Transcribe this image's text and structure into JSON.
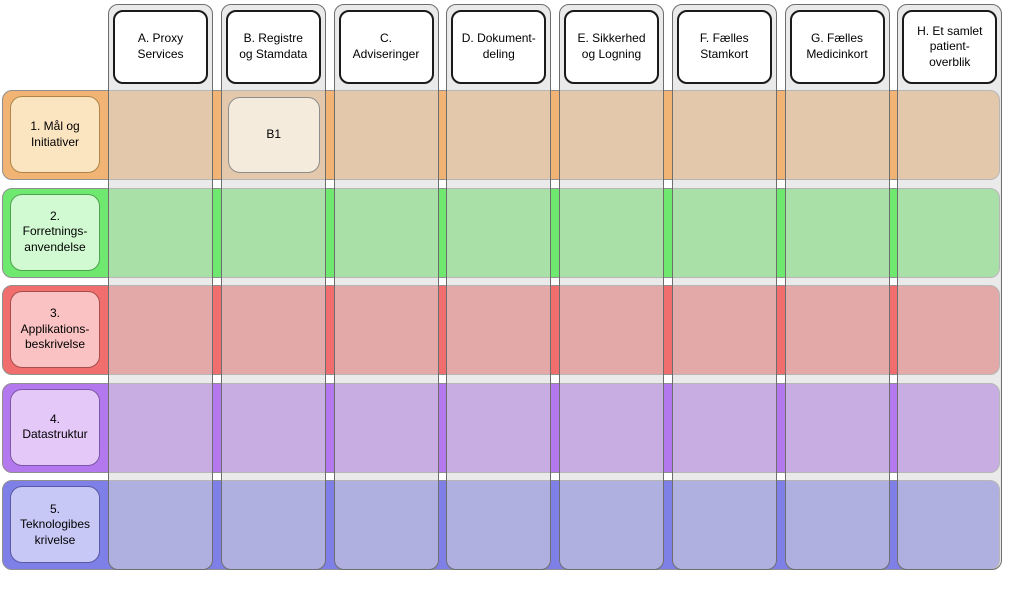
{
  "diagram": {
    "type": "architecture-matrix",
    "columns": [
      {
        "id": "A",
        "label": "A. Proxy\nServices"
      },
      {
        "id": "B",
        "label": "B. Registre\nog Stamdata"
      },
      {
        "id": "C",
        "label": "C.\nAdviseringer"
      },
      {
        "id": "D",
        "label": "D. Dokument-\ndeling"
      },
      {
        "id": "E",
        "label": "E. Sikkerhed\nog Logning"
      },
      {
        "id": "F",
        "label": "F. Fælles\nStamkort"
      },
      {
        "id": "G",
        "label": "G. Fælles\nMedicinkort"
      },
      {
        "id": "H",
        "label": "H. Et samlet\npatient-\noverblik"
      }
    ],
    "rows": [
      {
        "id": "1",
        "label": "1. Mål og\nInitiativer",
        "band_color": "#F2B474",
        "label_fill": "#FBE5C1",
        "label_border": "#AE8547"
      },
      {
        "id": "2",
        "label": "2.\nForretnings-\nanvendelse",
        "band_color": "#6EE86E",
        "label_fill": "#D2FAD2",
        "label_border": "#4FA24F"
      },
      {
        "id": "3",
        "label": "3.\nApplikations-\nbeskrivelse",
        "band_color": "#F06E6E",
        "label_fill": "#FAC2C2",
        "label_border": "#A84D4D"
      },
      {
        "id": "4",
        "label": "4.\nDatastruktur",
        "band_color": "#B478EE",
        "label_fill": "#E4C8F8",
        "label_border": "#7C56A7"
      },
      {
        "id": "5",
        "label": "5.\nTeknologibes\nkrivelse",
        "band_color": "#7F7FE8",
        "label_fill": "#C8C8F7",
        "label_border": "#5959A2"
      }
    ],
    "cells": [
      {
        "label": "B1",
        "row_id": "1",
        "column_id": "B",
        "fill": "#F5EBDC",
        "border": "#8C8C8C"
      }
    ],
    "colors": {
      "background": "#FFFFFF",
      "column_fill": "rgba(216,216,216,0.55)",
      "column_border": "#6E6E6E",
      "column_header_fill": "#FFFFFF",
      "column_header_border": "#1A1A1A",
      "band_border": "#8F8F8F",
      "text": "#000000"
    }
  }
}
